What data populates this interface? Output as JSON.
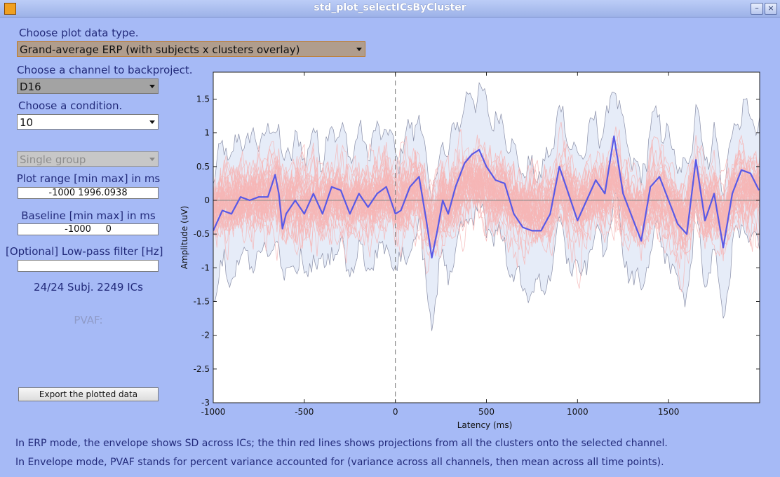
{
  "window": {
    "title": "std_plot_selectICsByCluster"
  },
  "controls": {
    "plot_type_label": "Choose plot data type.",
    "plot_type_value": "Grand-average ERP (with subjects x clusters overlay)",
    "channel_label": "Choose a channel to backproject.",
    "channel_value": "D16",
    "condition_label": "Choose a condition.",
    "condition_value": "10",
    "group_value": "Single group",
    "plot_range_label": "Plot range [min max] in ms",
    "plot_range_value": "-1000 1996.0938",
    "baseline_label": "Baseline [min max] in ms",
    "baseline_value": "-1000     0",
    "lowpass_label": "[Optional] Low-pass filter [Hz]",
    "lowpass_value": "",
    "subjects_text": "24/24 Subj. 2249 ICs",
    "pvaf_text": "PVAF:",
    "export_label": "Export the plotted data"
  },
  "footer": {
    "line1": "In ERP mode, the envelope shows SD across ICs; the thin red lines shows projections from all the clusters onto the selected channel.",
    "line2": "In Envelope mode, PVAF stands for percent variance accounted for (variance across all channels, then mean across all time points)."
  },
  "colors": {
    "background": "#a6baf6",
    "mean_line": "#5959e6",
    "overlay_lines": "#f6b6b6",
    "envelope": "#e6ecf8"
  },
  "chart_data": {
    "type": "line",
    "xlabel": "Latency (ms)",
    "ylabel": "Amplitude (uV)",
    "xlim": [
      -1000,
      2000
    ],
    "ylim": [
      -3,
      1.9
    ],
    "xticks": [
      -1000,
      -500,
      0,
      500,
      1000,
      1500
    ],
    "xtick_labels": [
      "-1000",
      "-500",
      "0",
      "500",
      "1000",
      "1500"
    ],
    "yticks": [
      1.5,
      1,
      0.5,
      0,
      -0.5,
      -1,
      -1.5,
      -2,
      -2.5,
      -3
    ],
    "ytick_labels": [
      "1.5",
      "1",
      "0.5",
      "0",
      "-0.5",
      "-1",
      "-1.5",
      "-2",
      "-2.5",
      "-3"
    ],
    "stimulus_onset_ms": 0,
    "series": [
      {
        "x": [
          -1000,
          -950,
          -900,
          -850,
          -800,
          -750,
          -700,
          -660,
          -640,
          -620,
          -600,
          -550,
          -500,
          -450,
          -400,
          -350,
          -300,
          -250,
          -200,
          -150,
          -100,
          -50,
          0,
          30,
          80,
          130,
          170,
          200,
          230,
          260,
          290,
          330,
          380,
          420,
          460,
          500,
          550,
          600,
          650,
          700,
          750,
          800,
          850,
          900,
          950,
          1000,
          1050,
          1100,
          1150,
          1200,
          1250,
          1300,
          1350,
          1400,
          1450,
          1500,
          1550,
          1600,
          1650,
          1700,
          1750,
          1800,
          1850,
          1900,
          1950,
          1996
        ],
        "y": [
          -0.45,
          -0.15,
          -0.2,
          0.05,
          0,
          0.05,
          0.05,
          0.38,
          0.1,
          -0.42,
          -0.2,
          0,
          -0.2,
          0.1,
          -0.2,
          0.2,
          0.15,
          -0.2,
          0.1,
          -0.1,
          0.1,
          0.2,
          -0.2,
          -0.15,
          0.2,
          0.35,
          -0.3,
          -0.85,
          -0.45,
          0,
          -0.2,
          0.2,
          0.55,
          0.68,
          0.75,
          0.5,
          0.3,
          0.25,
          -0.2,
          -0.4,
          -0.45,
          -0.45,
          -0.2,
          0.5,
          0.1,
          -0.3,
          0,
          0.3,
          0.1,
          0.95,
          0.1,
          -0.25,
          -0.6,
          0.2,
          0.35,
          0,
          -0.35,
          -0.5,
          0.6,
          -0.3,
          0.1,
          -0.7,
          0.1,
          0.45,
          0.4,
          0.15
        ]
      }
    ]
  }
}
